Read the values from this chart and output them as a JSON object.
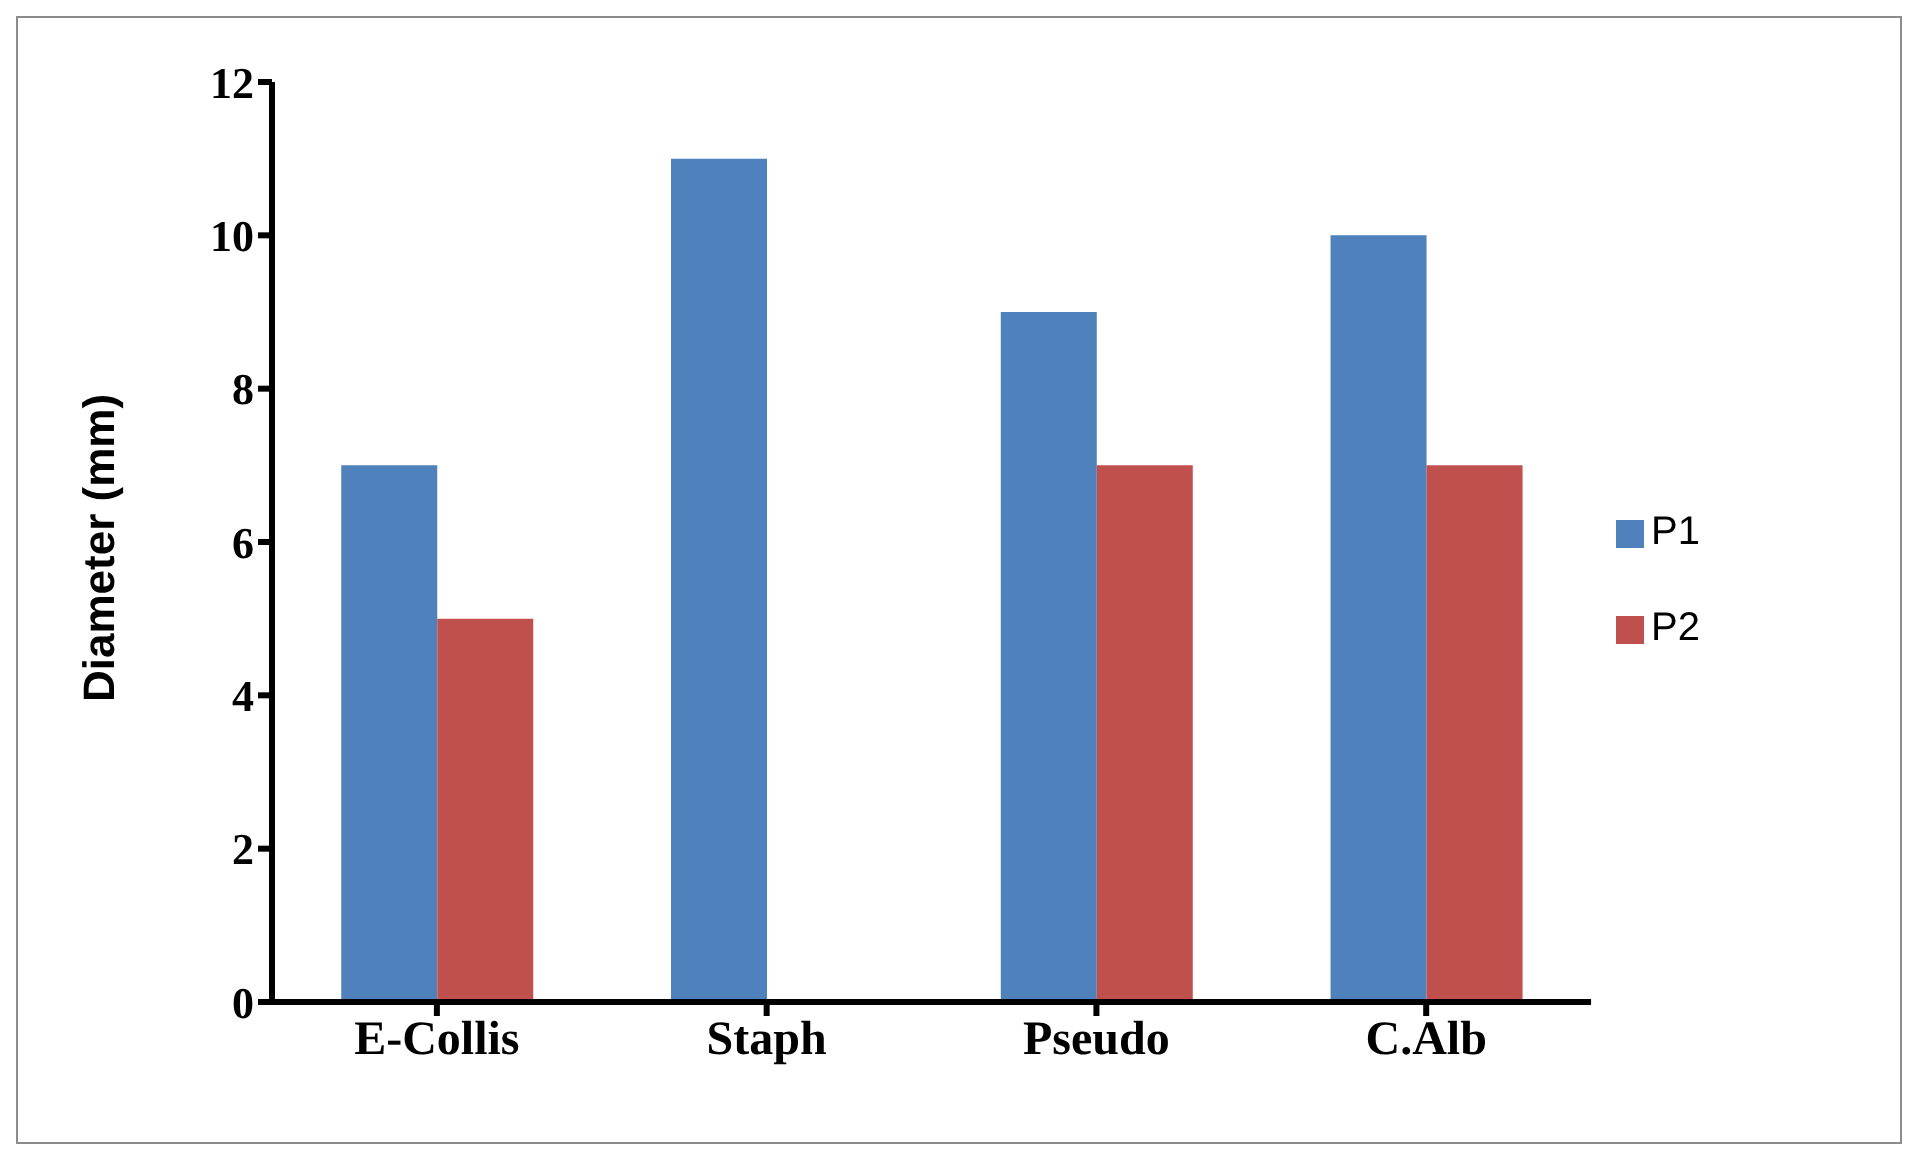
{
  "chart_data": {
    "type": "bar",
    "ylabel": "Diameter (mm)",
    "categories": [
      "E-Collis",
      "Staph",
      "Pseudo",
      "C.Alb"
    ],
    "series": [
      {
        "name": "P1",
        "color": "#4f81bd",
        "values": [
          7,
          11,
          9,
          10
        ]
      },
      {
        "name": "P2",
        "color": "#c0504d",
        "values": [
          5,
          null,
          7,
          7
        ]
      }
    ],
    "ylim": [
      0,
      12
    ],
    "yticks": [
      0,
      2,
      4,
      6,
      8,
      10,
      12
    ],
    "legend": "right"
  }
}
